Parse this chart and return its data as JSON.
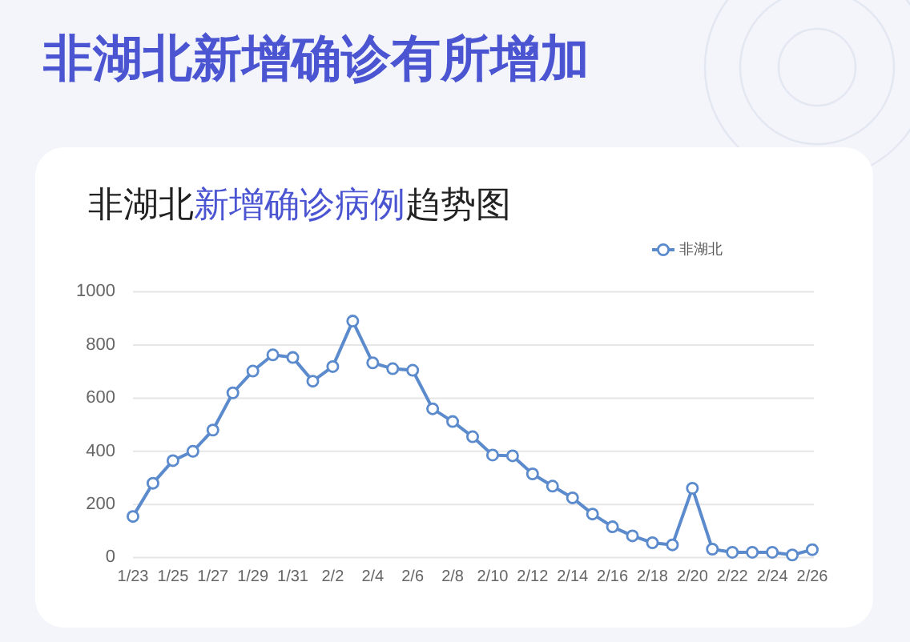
{
  "chart_data": {
    "type": "line",
    "title": "非湖北新增确诊有所增加",
    "subtitle": "非湖北新增确诊病例趋势图",
    "categories": [
      "1/23",
      null,
      "1/25",
      null,
      "1/27",
      null,
      "1/29",
      null,
      "1/31",
      null,
      "2/2",
      null,
      "2/4",
      null,
      "2/6",
      null,
      "2/8",
      null,
      "2/10",
      null,
      "2/12",
      null,
      "2/14",
      null,
      "2/16",
      null,
      "2/18",
      null,
      "2/20",
      null,
      "2/22",
      null,
      "2/24",
      null,
      "2/26"
    ],
    "series": [
      {
        "name": "非湖北",
        "color": "#5b8bcc",
        "values": [
          155,
          280,
          365,
          400,
          480,
          620,
          702,
          763,
          753,
          664,
          719,
          890,
          733,
          711,
          705,
          560,
          512,
          455,
          386,
          383,
          315,
          269,
          225,
          164,
          116,
          82,
          56,
          48,
          261,
          32,
          20,
          20,
          20,
          10,
          30
        ]
      }
    ],
    "ylim": [
      0,
      1000
    ],
    "yticks": [
      0,
      200,
      400,
      600,
      800,
      1000
    ],
    "grid": "y",
    "legend": "top right",
    "marker": "circle",
    "line_style": "solid"
  }
}
